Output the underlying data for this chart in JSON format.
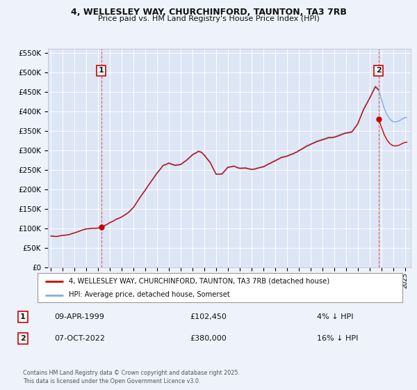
{
  "title1": "4, WELLESLEY WAY, CHURCHINFORD, TAUNTON, TA3 7RB",
  "title2": "Price paid vs. HM Land Registry's House Price Index (HPI)",
  "bg_color": "#eef2fb",
  "plot_bg_color": "#dde6f5",
  "grid_color": "#ffffff",
  "red_line_color": "#cc0000",
  "blue_line_color": "#88aadd",
  "ylabel_ticks": [
    "£0",
    "£50K",
    "£100K",
    "£150K",
    "£200K",
    "£250K",
    "£300K",
    "£350K",
    "£400K",
    "£450K",
    "£500K",
    "£550K"
  ],
  "ylabel_values": [
    0,
    50000,
    100000,
    150000,
    200000,
    250000,
    300000,
    350000,
    400000,
    450000,
    500000,
    550000
  ],
  "xlim_lo": 1994.75,
  "xlim_hi": 2025.5,
  "ylim": [
    0,
    560000
  ],
  "sale1_x": 1999.27,
  "sale1_y": 102450,
  "sale2_x": 2022.77,
  "sale2_y": 380000,
  "legend_label_red": "4, WELLESLEY WAY, CHURCHINFORD, TAUNTON, TA3 7RB (detached house)",
  "legend_label_blue": "HPI: Average price, detached house, Somerset",
  "table_row1": [
    "1",
    "09-APR-1999",
    "£102,450",
    "4% ↓ HPI"
  ],
  "table_row2": [
    "2",
    "07-OCT-2022",
    "£380,000",
    "16% ↓ HPI"
  ],
  "footer": "Contains HM Land Registry data © Crown copyright and database right 2025.\nThis data is licensed under the Open Government Licence v3.0."
}
